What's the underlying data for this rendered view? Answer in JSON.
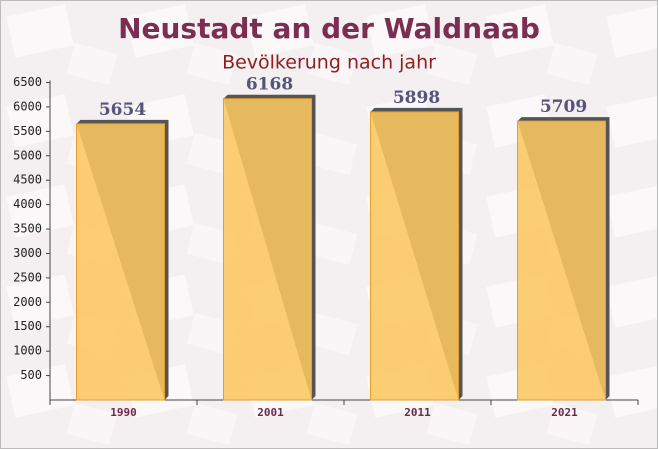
{
  "chart_data": {
    "type": "bar",
    "title": "Neustadt an der Waldnaab",
    "subtitle": "Bevölkerung nach jahr",
    "categories": [
      "1990",
      "2001",
      "2011",
      "2021"
    ],
    "values": [
      5654,
      6168,
      5898,
      5709
    ],
    "color": "#fcc760",
    "ylim": [
      0,
      6500
    ],
    "yticks": [
      500,
      1000,
      1500,
      2000,
      2500,
      3000,
      3500,
      4000,
      4500,
      5000,
      5500,
      6000,
      6500
    ]
  }
}
